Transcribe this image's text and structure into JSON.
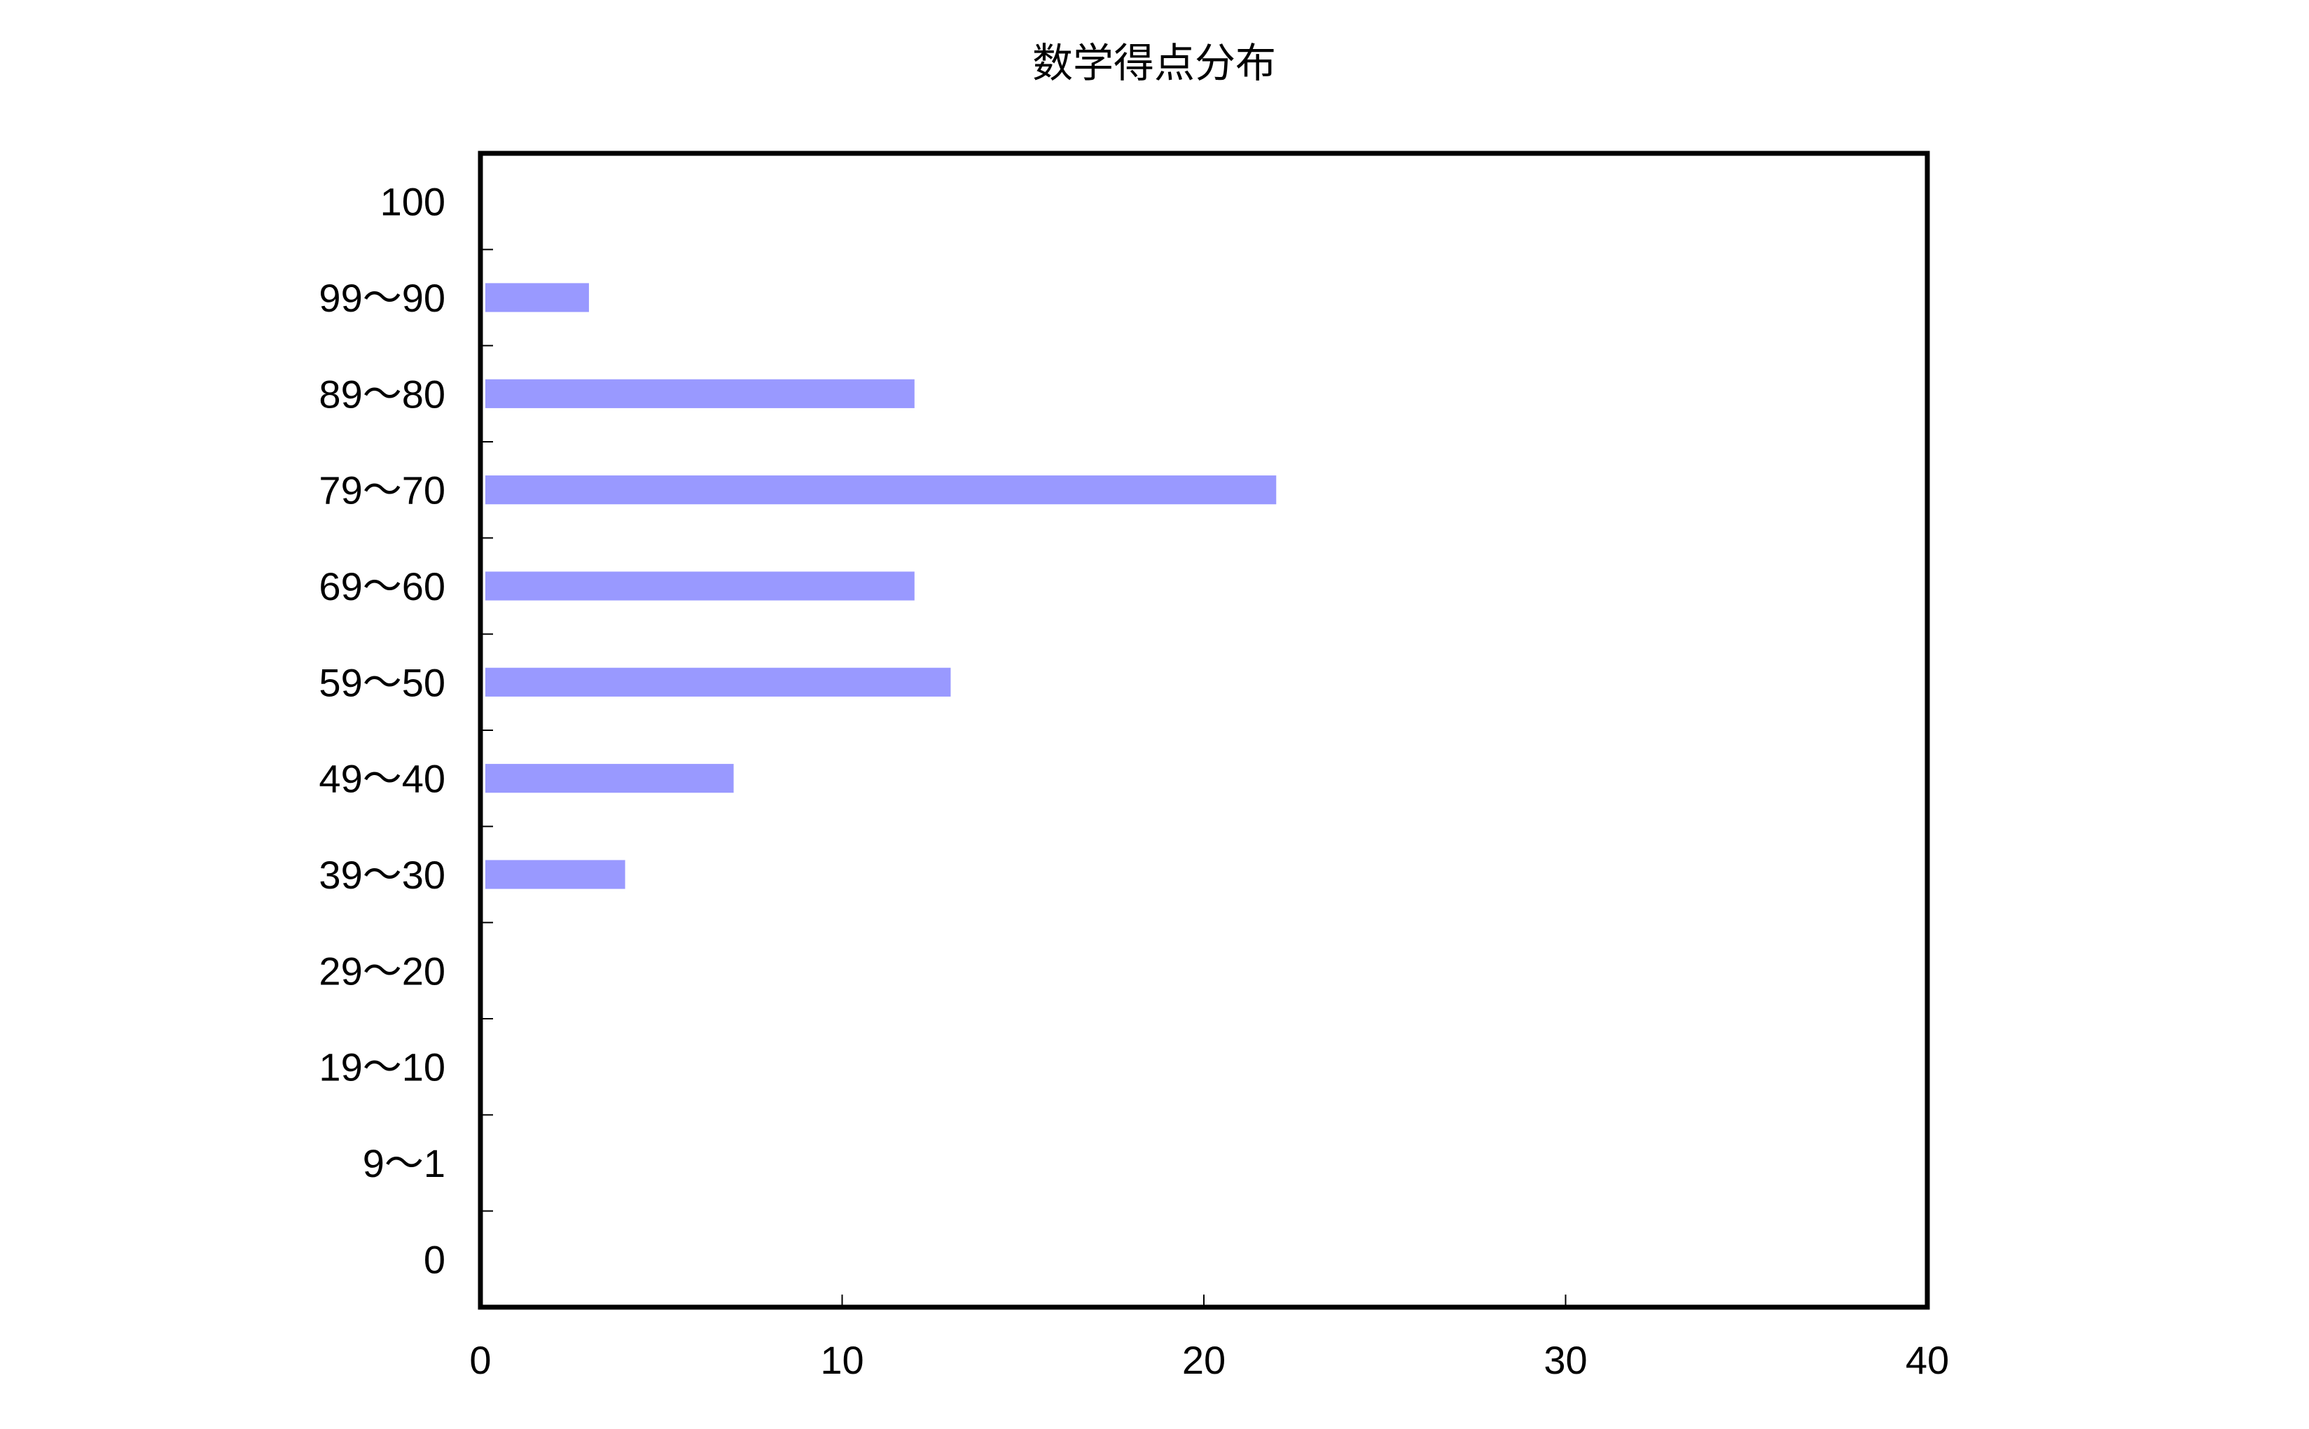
{
  "colors": {
    "bar": "#9999ff",
    "axis": "#000000",
    "background": "#ffffff"
  },
  "chart_data": {
    "type": "bar",
    "orientation": "horizontal",
    "title": "数学得点分布",
    "xlabel": "",
    "ylabel": "",
    "categories": [
      "100",
      "99〜90",
      "89〜80",
      "79〜70",
      "69〜60",
      "59〜50",
      "49〜40",
      "39〜30",
      "29〜20",
      "19〜10",
      "9〜1",
      "0"
    ],
    "values": [
      0,
      3,
      12,
      22,
      12,
      13,
      7,
      4,
      0,
      0,
      0,
      0
    ],
    "xlim": [
      0,
      40
    ],
    "xticks": [
      "0",
      "10",
      "20",
      "30",
      "40"
    ],
    "grid": false,
    "legend": "none"
  }
}
